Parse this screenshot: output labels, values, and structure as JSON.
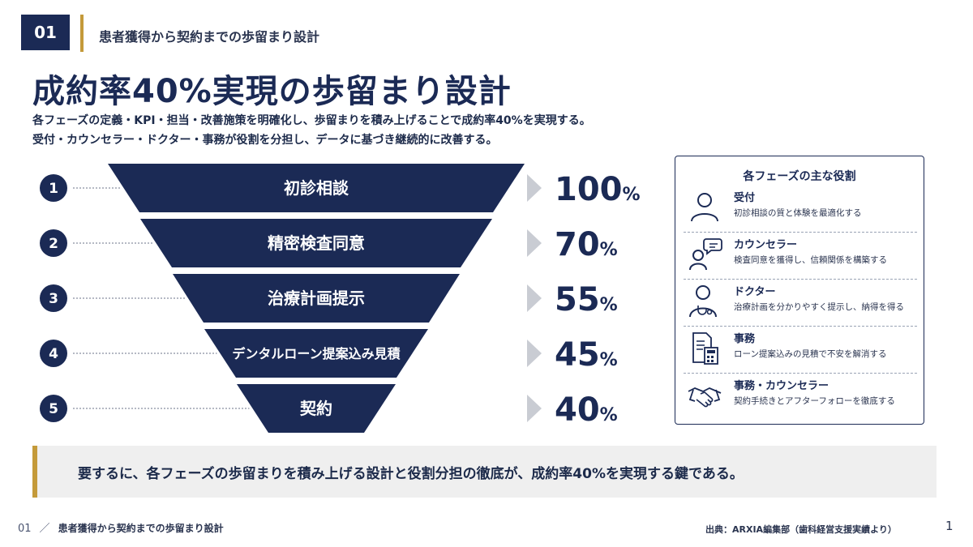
{
  "header": {
    "badge": "01",
    "title": "患者獲得から契約までの歩留まり設計"
  },
  "main_title": "成約率40%実現の歩留まり設計",
  "subtitle_1": "各フェーズの定義・KPI・担当・改善施策を明確化し、歩留まりを積み上げることで成約率40%を実現する。",
  "subtitle_2": "受付・カウンセラー・ドクター・事務が役割を分担し、データに基づき継続的に改善する。",
  "stages": [
    {
      "number": "1",
      "label": "初診相談",
      "value": "100",
      "unit": "%"
    },
    {
      "number": "2",
      "label": "精密検査同意",
      "value": "70",
      "unit": "%"
    },
    {
      "number": "3",
      "label": "治療計画提示",
      "value": "55",
      "unit": "%"
    },
    {
      "number": "4",
      "label": "デンタルローン提案込み見積",
      "value": "45",
      "unit": "%"
    },
    {
      "number": "5",
      "label": "契約",
      "value": "40",
      "unit": "%"
    }
  ],
  "roles": {
    "title": "各フェーズの主な役割",
    "items": [
      {
        "name": "受付",
        "desc": "初診相談の質と体験を最適化する",
        "icon": "person-icon"
      },
      {
        "name": "カウンセラー",
        "desc": "検査同意を獲得し、信頼関係を構築する",
        "icon": "counselor-chat-icon"
      },
      {
        "name": "ドクター",
        "desc": "治療計画を分かりやすく提示し、納得を得る",
        "icon": "doctor-stethoscope-icon"
      },
      {
        "name": "事務",
        "desc": "ローン提案込みの見積で不安を解消する",
        "icon": "document-calculator-icon"
      },
      {
        "name": "事務・カウンセラー",
        "desc": "契約手続きとアフターフォローを徹底する",
        "icon": "handshake-icon"
      }
    ]
  },
  "summary": "要するに、各フェーズの歩留まりを積み上げる設計と役割分担の徹底が、成約率40%を実現する鍵である。",
  "footer": {
    "number": "01",
    "slash": "／",
    "title": "患者獲得から契約までの歩留まり設計",
    "source": "出典：ARXIA編集部（歯科経営支援実績より）",
    "page": "1"
  },
  "colors": {
    "navy": "#1b2a55",
    "gold": "#c49a3a",
    "arrow_gray": "#c9ccd3",
    "summary_bg": "#efefef"
  }
}
